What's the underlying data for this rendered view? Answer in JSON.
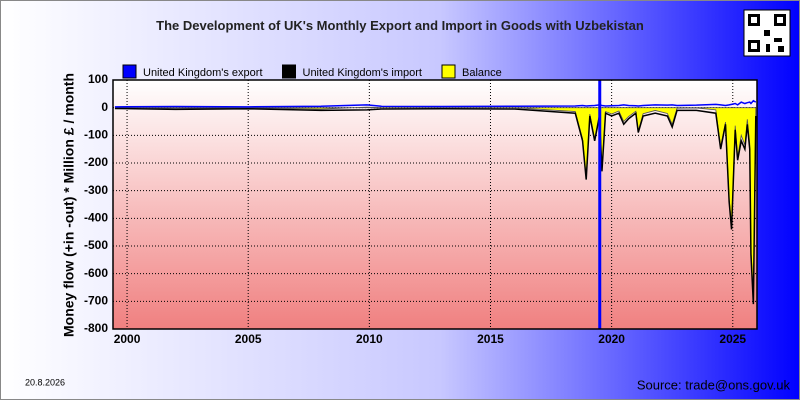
{
  "chart_data": {
    "type": "line",
    "title": "The Development of UK's Monthly Export and Import in Goods with Uzbekistan",
    "y_label": "Money flow (+in -out) * Million £ / month",
    "date": "20.8.2026",
    "source": "Source: trade@ons.gov.uk",
    "x": [
      1999.5,
      2002,
      2005,
      2008,
      2009.9,
      2010.5,
      2013,
      2016,
      2018.5,
      2018.8,
      2018.95,
      2019.1,
      2019.3,
      2019.5,
      2019.6,
      2019.75,
      2020,
      2020.3,
      2020.5,
      2020.7,
      2021,
      2021.1,
      2021.3,
      2021.8,
      2022.3,
      2022.5,
      2022.7,
      2023.5,
      2024.3,
      2024.5,
      2024.7,
      2024.85,
      2024.95,
      2025.1,
      2025.2,
      2025.35,
      2025.5,
      2025.6,
      2025.7,
      2025.75,
      2025.85,
      2025.95
    ],
    "series": [
      {
        "name": "Balance",
        "color": "#ffff00",
        "fill": true,
        "values": [
          0,
          -2,
          -1,
          -5,
          2,
          0,
          0,
          0,
          -14,
          -112,
          -254,
          -23,
          -112,
          -20,
          -222,
          -14,
          -23,
          -12,
          -50,
          -32,
          -13,
          -84,
          -22,
          -10,
          -21,
          -60,
          -2,
          -1,
          -8,
          -140,
          -52,
          -330,
          -428,
          -65,
          -180,
          -100,
          -135,
          -42,
          -130,
          -515,
          -685,
          -10
        ]
      },
      {
        "name": "United Kingdom's import",
        "color": "#000000",
        "fill": false,
        "values": [
          -3,
          -6,
          -4,
          -10,
          -8,
          -5,
          -4,
          -5,
          -20,
          -120,
          -260,
          -30,
          -120,
          -30,
          -230,
          -20,
          -30,
          -20,
          -60,
          -40,
          -20,
          -90,
          -30,
          -20,
          -30,
          -70,
          -10,
          -10,
          -20,
          -150,
          -60,
          -340,
          -440,
          -80,
          -190,
          -120,
          -150,
          -60,
          -150,
          -530,
          -710,
          -30
        ]
      },
      {
        "name": "United Kingdom's export",
        "color": "#0000ff",
        "fill": false,
        "values": [
          3,
          4,
          3,
          5,
          10,
          5,
          4,
          5,
          6,
          8,
          6,
          7,
          8,
          10,
          8,
          6,
          7,
          8,
          10,
          8,
          7,
          6,
          8,
          10,
          9,
          10,
          8,
          9,
          12,
          10,
          8,
          10,
          12,
          15,
          10,
          20,
          15,
          18,
          20,
          15,
          25,
          20
        ]
      }
    ],
    "legend_order": [
      2,
      1,
      0
    ],
    "xlim": [
      1999.42,
      2026
    ],
    "xticks": [
      2000,
      2005,
      2010,
      2015,
      2020,
      2025
    ],
    "ylim": [
      -800,
      100
    ],
    "yticks": [
      100,
      0,
      -100,
      -200,
      -300,
      -400,
      -500,
      -600,
      -700,
      -800
    ],
    "vline": {
      "x": 2019.51,
      "color": "#0000ff"
    },
    "grid": true
  }
}
